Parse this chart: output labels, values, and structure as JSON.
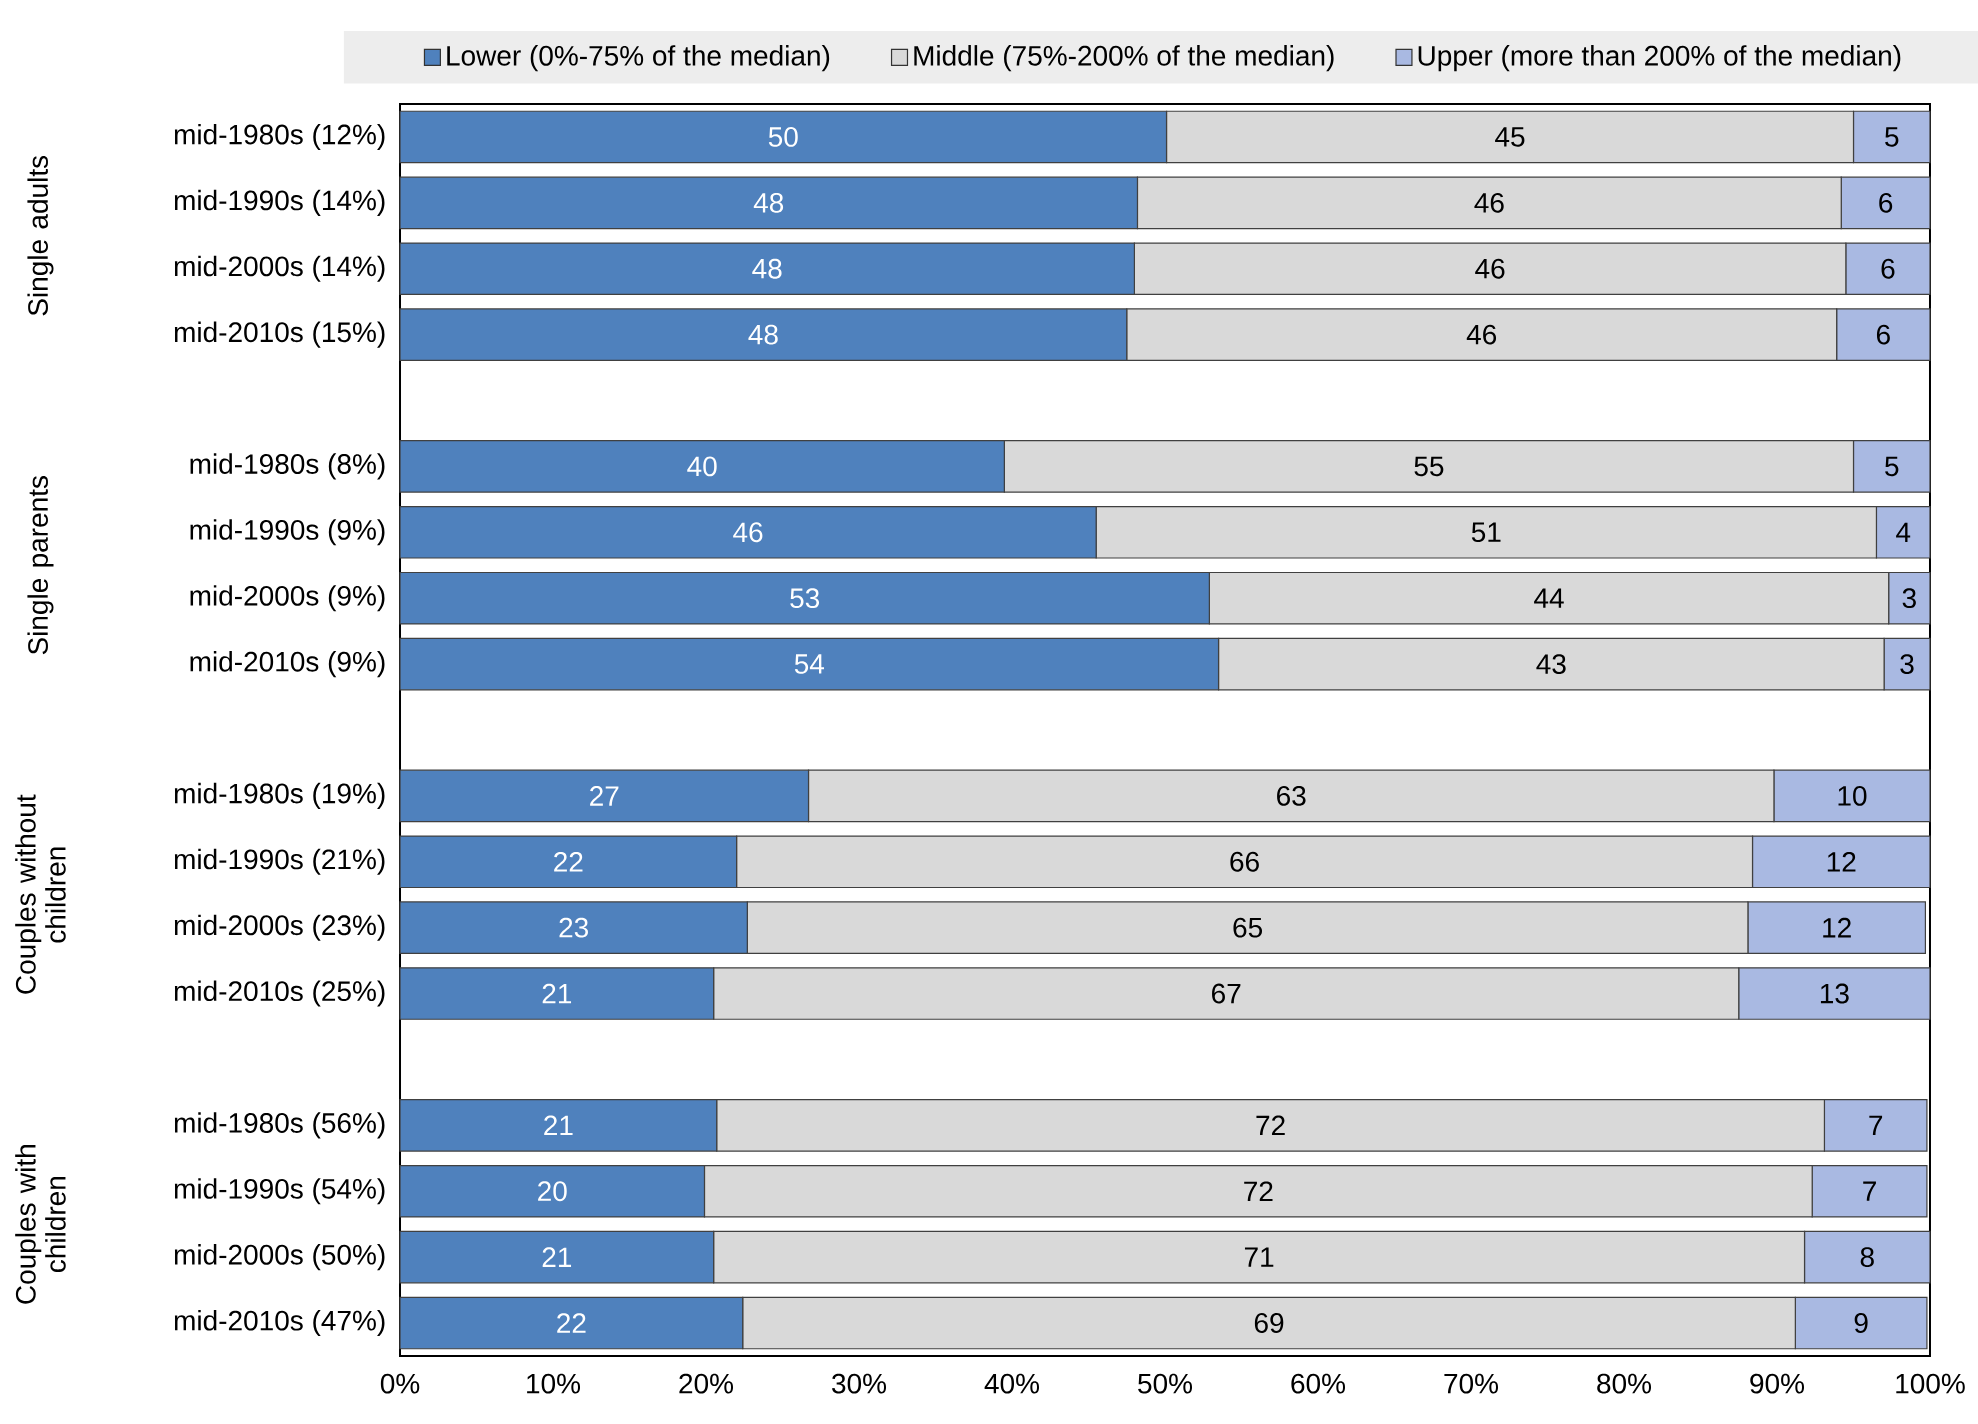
{
  "chart_data": {
    "type": "bar",
    "orientation": "horizontal",
    "stacked": true,
    "categories": [
      "mid-1980s (12%)",
      "mid-1990s (14%)",
      "mid-2000s (14%)",
      "mid-2010s (15%)",
      null,
      "mid-1980s (8%)",
      "mid-1990s (9%)",
      "mid-2000s (9%)",
      "mid-2010s (9%)",
      null,
      "mid-1980s (19%)",
      "mid-1990s (21%)",
      "mid-2000s (23%)",
      "mid-2010s (25%)",
      null,
      "mid-1980s (56%)",
      "mid-1990s (54%)",
      "mid-2000s (50%)",
      "mid-2010s (47%)"
    ],
    "series": [
      {
        "name": "Lower (0%-75% of the median)",
        "color": "#4f81bd",
        "values": [
          50.1,
          48.2,
          48.0,
          47.5,
          null,
          39.5,
          45.5,
          52.9,
          53.5,
          null,
          26.7,
          22.0,
          22.7,
          20.5,
          null,
          20.7,
          19.9,
          20.5,
          22.4
        ],
        "value_labels": [
          "50",
          "48",
          "48",
          "48",
          null,
          "40",
          "46",
          "53",
          "54",
          null,
          "27",
          "22",
          "23",
          "21",
          null,
          "21",
          "20",
          "21",
          "22"
        ]
      },
      {
        "name": "Middle (75%-200% of the median)",
        "color": "#d9d9d9",
        "values": [
          44.9,
          46.0,
          46.5,
          46.4,
          null,
          55.5,
          51.0,
          44.4,
          43.5,
          null,
          63.1,
          66.4,
          65.4,
          67.0,
          null,
          72.4,
          72.4,
          71.3,
          68.8
        ],
        "value_labels": [
          "45",
          "46",
          "46",
          "46",
          null,
          "55",
          "51",
          "44",
          "43",
          null,
          "63",
          "66",
          "65",
          "67",
          null,
          "72",
          "72",
          "71",
          "69"
        ]
      },
      {
        "name": "Upper (more than 200% of the median)",
        "color": "#a9b9e2",
        "values": [
          5.0,
          5.8,
          5.5,
          6.1,
          null,
          5.0,
          3.5,
          2.7,
          3.0,
          null,
          10.2,
          11.6,
          11.6,
          12.5,
          null,
          6.7,
          7.5,
          8.2,
          8.6
        ],
        "value_labels": [
          "5",
          "6",
          "6",
          "6",
          null,
          "5",
          "4",
          "3",
          "3",
          null,
          "10",
          "12",
          "12",
          "13",
          null,
          "7",
          "7",
          "8",
          "9"
        ]
      }
    ],
    "xlim": [
      0,
      100
    ],
    "xticks": [
      {
        "value": 0,
        "label": "0%"
      },
      {
        "value": 10,
        "label": "10%"
      },
      {
        "value": 20,
        "label": "20%"
      },
      {
        "value": 30,
        "label": "30%"
      },
      {
        "value": 40,
        "label": "40%"
      },
      {
        "value": 50,
        "label": "50%"
      },
      {
        "value": 60,
        "label": "60%"
      },
      {
        "value": 70,
        "label": "70%"
      },
      {
        "value": 80,
        "label": "80%"
      },
      {
        "value": 90,
        "label": "90%"
      },
      {
        "value": 100,
        "label": "100%"
      }
    ],
    "legend": "top",
    "annotations": [
      "Single adults",
      "Single parents",
      "Couples without children",
      "Couples with children"
    ]
  }
}
